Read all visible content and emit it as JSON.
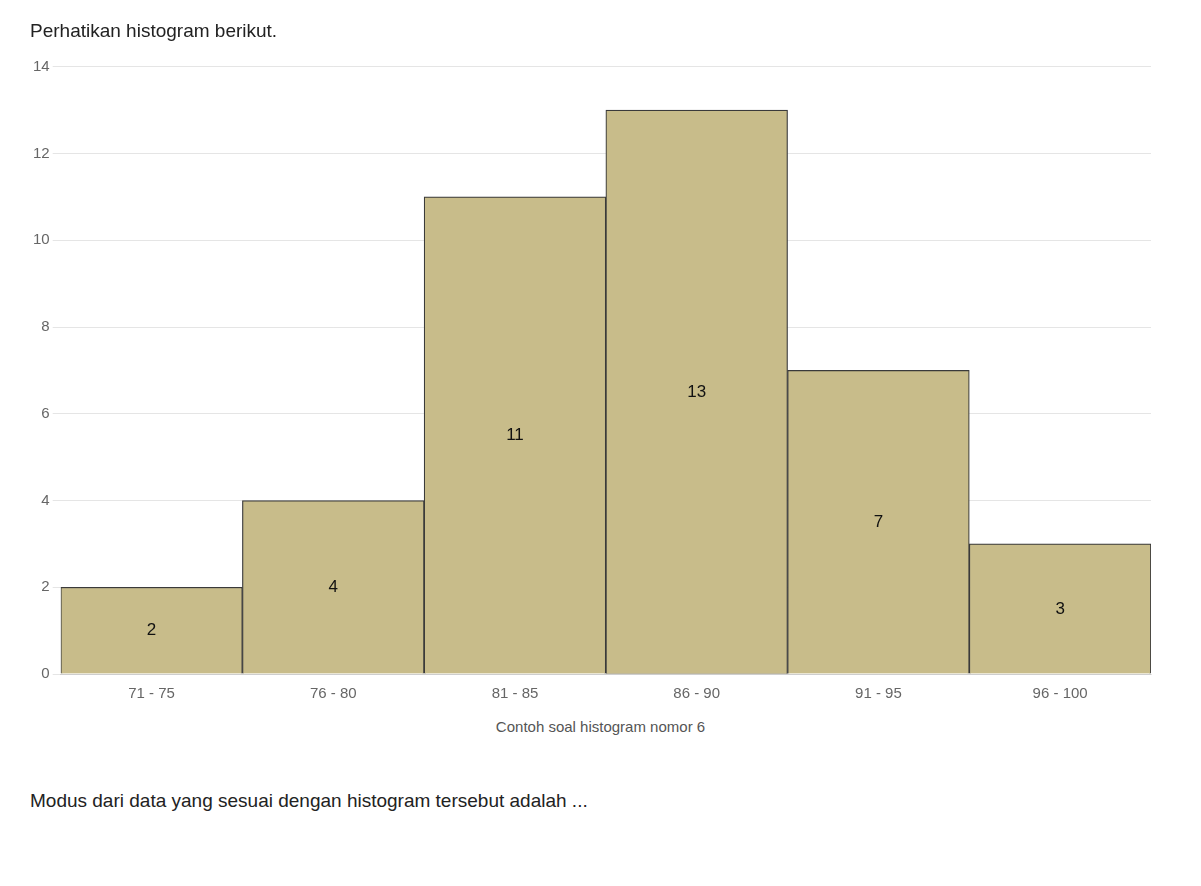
{
  "chart_data": {
    "type": "bar",
    "title": "Perhatikan histogram berikut.",
    "annotations": [
      "Contoh soal histogram nomor 6",
      "Modus dari data yang sesuai dengan histogram tersebut adalah ..."
    ],
    "categories": [
      "71 - 75",
      "76 - 80",
      "81 - 85",
      "86 - 90",
      "91 - 95",
      "96 - 100"
    ],
    "values": [
      2,
      4,
      11,
      13,
      7,
      3
    ],
    "color": "#C8BC8A",
    "ylim": [
      0,
      14
    ],
    "yticks": [
      0,
      2,
      4,
      6,
      8,
      10,
      12,
      14
    ],
    "grid": true,
    "data_labels": true
  }
}
